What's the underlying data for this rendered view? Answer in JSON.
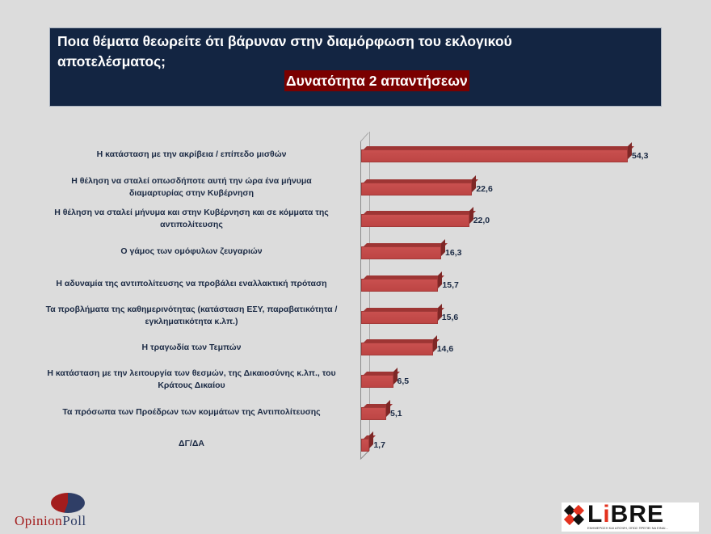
{
  "header": {
    "title": "Ποια θέματα θεωρείτε ότι βάρυναν στην διαμόρφωση του εκλογικού αποτελέσματος;",
    "subtitle": "Δυνατότητα 2 απαντήσεων"
  },
  "colors": {
    "title_bg": "#132542",
    "subtitle_bg": "#7a0000",
    "bar": "#c0504d",
    "label_text": "#1b2a44",
    "background": "#dcdcdc"
  },
  "chart_data": {
    "type": "bar",
    "orientation": "horizontal",
    "style": "3d",
    "title": "Ποια θέματα θεωρείτε ότι βάρυναν στην διαμόρφωση του εκλογικού αποτελέσματος;",
    "subtitle": "Δυνατότητα 2 απαντήσεων",
    "categories": [
      "Η κατάσταση με την ακρίβεια / επίπεδο μισθών",
      "Η θέληση να σταλεί οπωσδήποτε αυτή την ώρα ένα μήνυμα διαμαρτυρίας στην Κυβέρνηση",
      "Η θέληση να σταλεί μήνυμα και στην Κυβέρνηση και σε κόμματα της αντιπολίτευσης",
      "Ο γάμος των ομόφυλων ζευγαριών",
      "Η αδυναμία της αντιπολίτευσης να προβάλει εναλλακτική πρόταση",
      "Τα προβλήματα της καθημερινότητας (κατάσταση ΕΣΥ, παραβατικότητα / εγκληματικότητα κ.λπ.)",
      "Η τραγωδία των Τεμπών",
      "Η κατάσταση με την λειτουργία των θεσμών, της Δικαιοσύνης κ.λπ., του Κράτους Δικαίου",
      "Τα πρόσωπα των Προέδρων των κομμάτων της Αντιπολίτευσης",
      "ΔΓ/ΔΑ"
    ],
    "values": [
      54.3,
      22.6,
      22.0,
      16.3,
      15.7,
      15.6,
      14.6,
      6.5,
      5.1,
      1.7
    ],
    "value_labels": [
      "54,3",
      "22,6",
      "22,0",
      "16,3",
      "15,7",
      "15,6",
      "14,6",
      "6,5",
      "5,1",
      "1,7"
    ],
    "xlabel": "",
    "ylabel": "",
    "xlim": [
      0,
      55
    ],
    "grid": false,
    "legend": "none"
  },
  "rows": [
    {
      "label_lines": [
        "Η κατάσταση με την ακρίβεια / επίπεδο μισθών"
      ],
      "value": "54,3"
    },
    {
      "label_lines": [
        "Η θέληση να σταλεί οπωσδήποτε αυτή την ώρα ένα μήνυμα",
        "διαμαρτυρίας στην Κυβέρνηση"
      ],
      "value": "22,6"
    },
    {
      "label_lines": [
        "Η θέληση να σταλεί μήνυμα και στην Κυβέρνηση και σε κόμματα της",
        "αντιπολίτευσης"
      ],
      "value": "22,0"
    },
    {
      "label_lines": [
        "Ο γάμος των ομόφυλων ζευγαριών"
      ],
      "value": "16,3"
    },
    {
      "label_lines": [
        "Η αδυναμία της αντιπολίτευσης να προβάλει εναλλακτική πρόταση"
      ],
      "value": "15,7"
    },
    {
      "label_lines": [
        "Τα προβλήματα της καθημερινότητας (κατάσταση ΕΣΥ, παραβατικότητα /",
        "εγκληματικότητα κ.λπ.)"
      ],
      "value": "15,6"
    },
    {
      "label_lines": [
        "Η τραγωδία των Τεμπών"
      ],
      "value": "14,6"
    },
    {
      "label_lines": [
        "Η κατάσταση με την λειτουργία των θεσμών, της Δικαιοσύνης κ.λπ., του",
        "Κράτους Δικαίου"
      ],
      "value": "6,5"
    },
    {
      "label_lines": [
        "Τα πρόσωπα των Προέδρων των κομμάτων της Αντιπολίτευσης"
      ],
      "value": "5,1"
    },
    {
      "label_lines": [
        "ΔΓ/ΔΑ"
      ],
      "value": "1,7"
    }
  ],
  "logos": {
    "left": {
      "part1": "Opinion",
      "part2": "Poll"
    },
    "right": {
      "prefix": "L",
      "accent": "i",
      "suffix": "BRE",
      "tagline": "ΕΝΗΜΕΡΩΣΗ ΚΑΙ ΑΠΟΨΗ, ΟΠΩΣ ΠΡΕΠΕΙ ΝΑ ΕΙΝΑΙ..."
    }
  }
}
